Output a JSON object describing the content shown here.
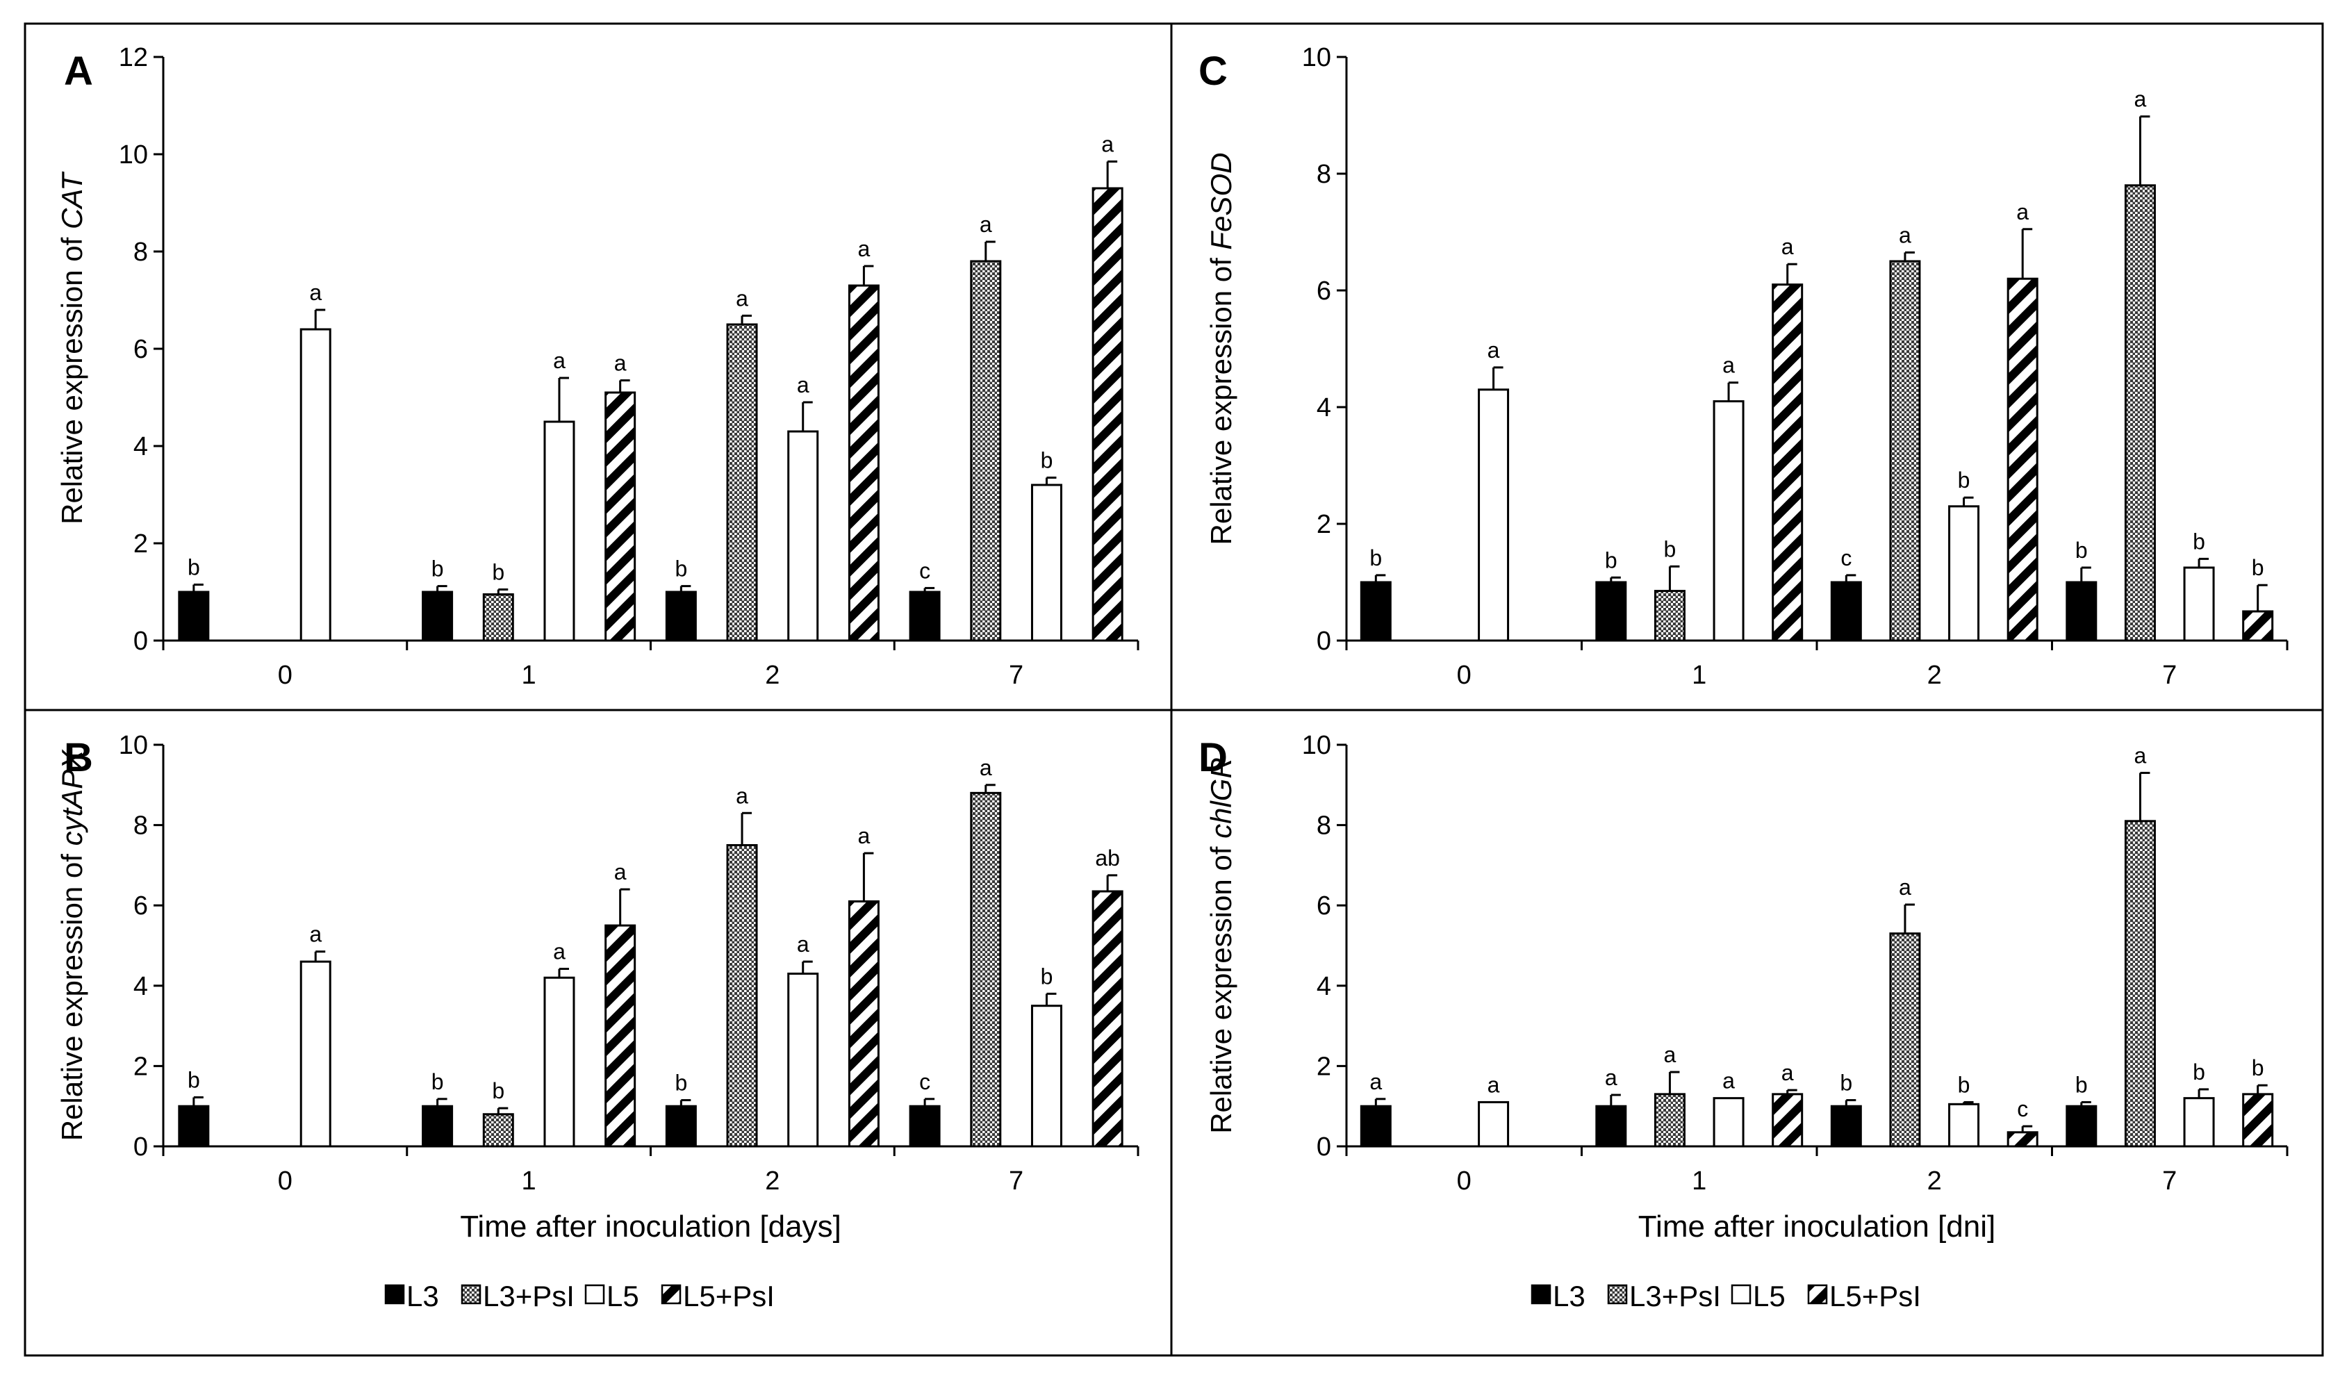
{
  "colors": {
    "L3": "#000000",
    "L5": "#ffffff",
    "axis": "#000000",
    "hatch": "#000000",
    "grid_bg": "#9a9a9a"
  },
  "series_names": [
    "L3",
    "L3+PsI",
    "L5",
    "L5+PsI"
  ],
  "chart_data": [
    {
      "type": "bar",
      "panel": "A",
      "ylabel_prefix": "Relative expression of ",
      "gene": "CAT",
      "xlabel": "",
      "ylim": [
        0,
        12
      ],
      "yticks": [
        "0",
        "2",
        "4",
        "6",
        "8",
        "10",
        "12"
      ],
      "categories": [
        "0",
        "1",
        "2",
        "7"
      ],
      "series": [
        {
          "name": "L3",
          "values": [
            1.0,
            1.0,
            1.0,
            1.0
          ],
          "errors": [
            0.15,
            0.12,
            0.12,
            0.08
          ],
          "letters": [
            "b",
            "b",
            "b",
            "c"
          ]
        },
        {
          "name": "L3+PsI",
          "values": [
            null,
            0.95,
            6.5,
            7.8
          ],
          "errors": [
            null,
            0.1,
            0.18,
            0.4
          ],
          "letters": [
            null,
            "b",
            "a",
            "a"
          ]
        },
        {
          "name": "L5",
          "values": [
            6.4,
            4.5,
            4.3,
            3.2
          ],
          "errors": [
            0.4,
            0.9,
            0.6,
            0.15
          ],
          "letters": [
            "a",
            "a",
            "a",
            "b"
          ]
        },
        {
          "name": "L5+PsI",
          "values": [
            null,
            5.1,
            7.3,
            9.3
          ],
          "errors": [
            null,
            0.25,
            0.4,
            0.55
          ],
          "letters": [
            null,
            "a",
            "a",
            "a"
          ]
        }
      ]
    },
    {
      "type": "bar",
      "panel": "C",
      "ylabel_prefix": "Relative expression of ",
      "gene": "FeSOD",
      "xlabel": "",
      "ylim": [
        0,
        10
      ],
      "yticks": [
        "0",
        "2",
        "4",
        "6",
        "8",
        "10"
      ],
      "categories": [
        "0",
        "1",
        "2",
        "7"
      ],
      "series": [
        {
          "name": "L3",
          "values": [
            1.0,
            1.0,
            1.0,
            1.0
          ],
          "errors": [
            0.12,
            0.08,
            0.12,
            0.25
          ],
          "letters": [
            "b",
            "b",
            "c",
            "b"
          ]
        },
        {
          "name": "L3+PsI",
          "values": [
            null,
            0.85,
            6.5,
            7.8
          ],
          "errors": [
            null,
            0.42,
            0.15,
            1.18
          ],
          "letters": [
            null,
            "b",
            "a",
            "a"
          ]
        },
        {
          "name": "L5",
          "values": [
            4.3,
            4.1,
            2.3,
            1.25
          ],
          "errors": [
            0.38,
            0.32,
            0.15,
            0.15
          ],
          "letters": [
            "a",
            "a",
            "b",
            "b"
          ]
        },
        {
          "name": "L5+PsI",
          "values": [
            null,
            6.1,
            6.2,
            0.5
          ],
          "errors": [
            null,
            0.35,
            0.85,
            0.45
          ],
          "letters": [
            null,
            "a",
            "a",
            "b"
          ]
        }
      ]
    },
    {
      "type": "bar",
      "panel": "B",
      "ylabel_prefix": "Relative expression of ",
      "gene": "cytAPX",
      "xlabel": "Time after inoculation [days]",
      "ylim": [
        0,
        10
      ],
      "yticks": [
        "0",
        "2",
        "4",
        "6",
        "8",
        "10"
      ],
      "categories": [
        "0",
        "1",
        "2",
        "7"
      ],
      "series": [
        {
          "name": "L3",
          "values": [
            1.0,
            1.0,
            1.0,
            1.0
          ],
          "errors": [
            0.22,
            0.18,
            0.15,
            0.18
          ],
          "letters": [
            "b",
            "b",
            "b",
            "c"
          ]
        },
        {
          "name": "L3+PsI",
          "values": [
            null,
            0.8,
            7.5,
            8.8
          ],
          "errors": [
            null,
            0.15,
            0.8,
            0.2
          ],
          "letters": [
            null,
            "b",
            "a",
            "a"
          ]
        },
        {
          "name": "L5",
          "values": [
            4.6,
            4.2,
            4.3,
            3.5
          ],
          "errors": [
            0.25,
            0.22,
            0.3,
            0.3
          ],
          "letters": [
            "a",
            "a",
            "a",
            "b"
          ]
        },
        {
          "name": "L5+PsI",
          "values": [
            null,
            5.5,
            6.1,
            6.35
          ],
          "errors": [
            null,
            0.9,
            1.2,
            0.4
          ],
          "letters": [
            null,
            "a",
            "a",
            "ab"
          ]
        }
      ]
    },
    {
      "type": "bar",
      "panel": "D",
      "ylabel_prefix": "Relative expression of ",
      "gene": "chlGR",
      "xlabel": "Time after inoculation [dni]",
      "ylim": [
        0,
        10
      ],
      "yticks": [
        "0",
        "2",
        "4",
        "6",
        "8",
        "10"
      ],
      "categories": [
        "0",
        "1",
        "2",
        "7"
      ],
      "series": [
        {
          "name": "L3",
          "values": [
            1.0,
            1.0,
            1.0,
            1.0
          ],
          "errors": [
            0.18,
            0.28,
            0.15,
            0.1
          ],
          "letters": [
            "a",
            "a",
            "b",
            "b"
          ]
        },
        {
          "name": "L3+PsI",
          "values": [
            null,
            1.3,
            5.3,
            8.1
          ],
          "errors": [
            null,
            0.55,
            0.72,
            1.2
          ],
          "letters": [
            null,
            "a",
            "a",
            "a"
          ]
        },
        {
          "name": "L5",
          "values": [
            1.1,
            1.2,
            1.05,
            1.2
          ],
          "errors": [
            0.0,
            0.0,
            0.05,
            0.22
          ],
          "letters": [
            "a",
            "a",
            "b",
            "b"
          ]
        },
        {
          "name": "L5+PsI",
          "values": [
            null,
            1.3,
            0.35,
            1.3
          ],
          "errors": [
            null,
            0.1,
            0.15,
            0.22
          ],
          "letters": [
            null,
            "a",
            "c",
            "b"
          ]
        }
      ]
    }
  ]
}
